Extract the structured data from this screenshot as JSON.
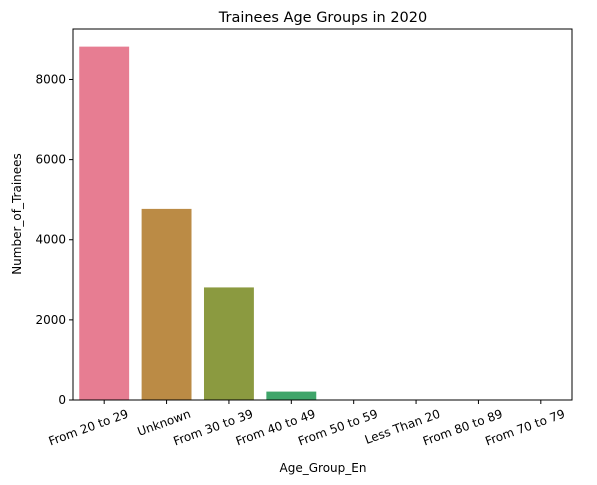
{
  "chart_data": {
    "type": "bar",
    "title": "Trainees Age Groups in 2020",
    "xlabel": "Age_Group_En",
    "ylabel": "Number_of_Trainees",
    "categories": [
      "From 20 to 29",
      "Unknown",
      "From 30 to 39",
      "From 40 to 49",
      "From 50 to 59",
      "Less Than 20",
      "From 80 to 89",
      "From 70 to 79"
    ],
    "values": [
      8820,
      4770,
      2810,
      210,
      8,
      5,
      2,
      1
    ],
    "colors": [
      "#e77d92",
      "#bb8b45",
      "#8b9a40",
      "#3fa56a",
      "#46a39a",
      "#4aa0bd",
      "#a38cd6",
      "#de79c9"
    ],
    "ylim": [
      0,
      9260
    ],
    "yticks": [
      0,
      2000,
      4000,
      6000,
      8000
    ],
    "ytick_labels": [
      "0",
      "2000",
      "4000",
      "6000",
      "8000"
    ],
    "xtick_rotation": 20,
    "grid": false,
    "legend": "none"
  }
}
